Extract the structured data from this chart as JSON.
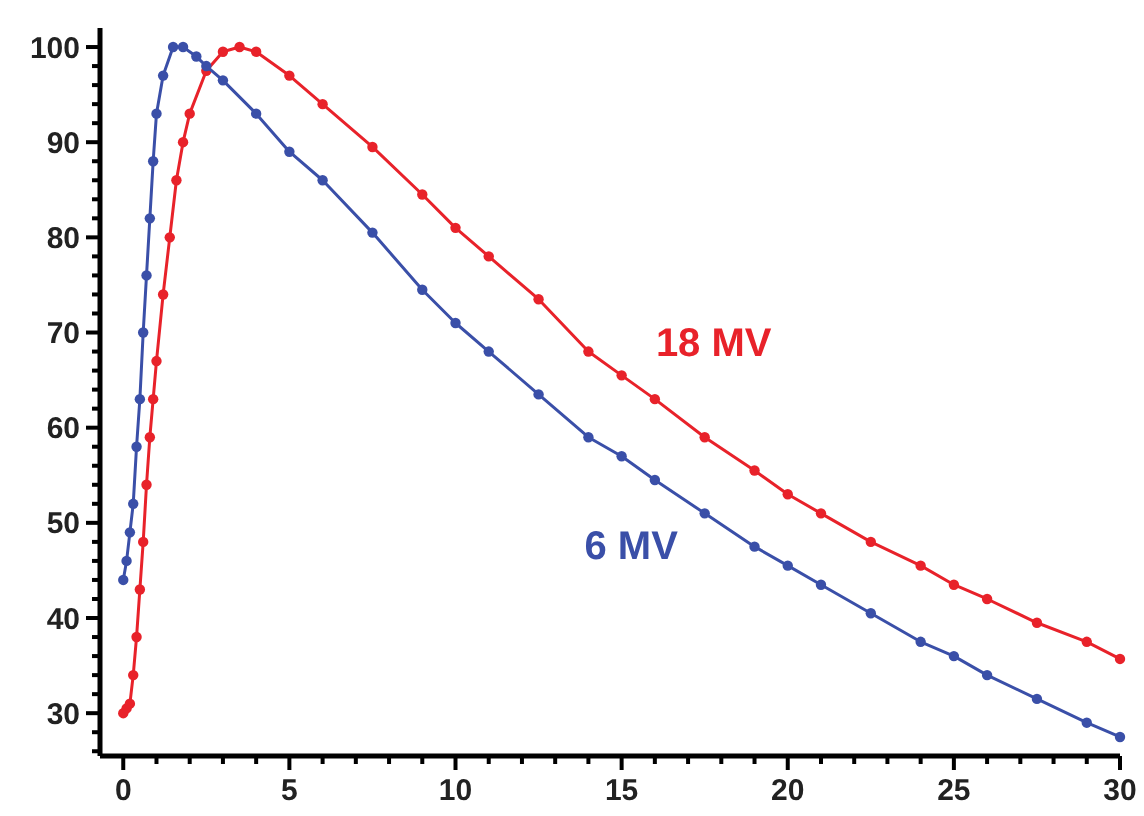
{
  "chart_data": {
    "type": "line",
    "xlim": [
      -0.7,
      30
    ],
    "ylim": [
      25.5,
      102
    ],
    "xticks": [
      0,
      {
        "value": 1,
        "label": null
      },
      {
        "value": 2,
        "label": null
      },
      {
        "value": 3,
        "label": null
      },
      {
        "value": 4,
        "label": null
      },
      5,
      {
        "value": 6,
        "label": null
      },
      {
        "value": 7,
        "label": null
      },
      {
        "value": 8,
        "label": null
      },
      {
        "value": 9,
        "label": null
      },
      10,
      {
        "value": 11,
        "label": null
      },
      {
        "value": 12,
        "label": null
      },
      {
        "value": 13,
        "label": null
      },
      {
        "value": 14,
        "label": null
      },
      15,
      {
        "value": 16,
        "label": null
      },
      {
        "value": 17,
        "label": null
      },
      {
        "value": 18,
        "label": null
      },
      {
        "value": 19,
        "label": null
      },
      20,
      {
        "value": 21,
        "label": null
      },
      {
        "value": 22,
        "label": null
      },
      {
        "value": 23,
        "label": null
      },
      {
        "value": 24,
        "label": null
      },
      25,
      {
        "value": 26,
        "label": null
      },
      {
        "value": 27,
        "label": null
      },
      {
        "value": 28,
        "label": null
      },
      {
        "value": 29,
        "label": null
      },
      30
    ],
    "yticks": [
      {
        "value": 26,
        "label": null
      },
      {
        "value": 28,
        "label": null
      },
      30,
      {
        "value": 32,
        "label": null
      },
      {
        "value": 34,
        "label": null
      },
      {
        "value": 36,
        "label": null
      },
      {
        "value": 38,
        "label": null
      },
      40,
      {
        "value": 42,
        "label": null
      },
      {
        "value": 44,
        "label": null
      },
      {
        "value": 46,
        "label": null
      },
      {
        "value": 48,
        "label": null
      },
      50,
      {
        "value": 52,
        "label": null
      },
      {
        "value": 54,
        "label": null
      },
      {
        "value": 56,
        "label": null
      },
      {
        "value": 58,
        "label": null
      },
      60,
      {
        "value": 62,
        "label": null
      },
      {
        "value": 64,
        "label": null
      },
      {
        "value": 66,
        "label": null
      },
      {
        "value": 68,
        "label": null
      },
      70,
      {
        "value": 72,
        "label": null
      },
      {
        "value": 74,
        "label": null
      },
      {
        "value": 76,
        "label": null
      },
      {
        "value": 78,
        "label": null
      },
      80,
      {
        "value": 82,
        "label": null
      },
      {
        "value": 84,
        "label": null
      },
      {
        "value": 86,
        "label": null
      },
      {
        "value": 88,
        "label": null
      },
      90,
      {
        "value": 92,
        "label": null
      },
      {
        "value": 94,
        "label": null
      },
      {
        "value": 96,
        "label": null
      },
      {
        "value": 98,
        "label": null
      },
      100
    ],
    "grid": false,
    "marker": "circle",
    "line_style": "solid",
    "series": [
      {
        "name": "18 MV",
        "color": "#e8222a",
        "x": [
          0,
          0.1,
          0.2,
          0.3,
          0.4,
          0.5,
          0.6,
          0.7,
          0.8,
          0.9,
          1,
          1.2,
          1.4,
          1.6,
          1.8,
          2,
          2.5,
          3,
          3.5,
          4,
          5,
          6,
          7.5,
          9,
          10,
          11,
          12.5,
          14,
          15,
          16,
          17.5,
          19,
          20,
          21,
          22.5,
          24,
          25,
          26,
          27.5,
          29,
          30
        ],
        "values": [
          30,
          30.5,
          31,
          34,
          38,
          43,
          48,
          54,
          59,
          63,
          67,
          74,
          80,
          86,
          90,
          93,
          97.5,
          99.5,
          100,
          99.5,
          97,
          94,
          89.5,
          84.5,
          81,
          78,
          73.5,
          68,
          65.5,
          63,
          59,
          55.5,
          53,
          51,
          48,
          45.5,
          43.5,
          42,
          39.5,
          37.5,
          35.7
        ]
      },
      {
        "name": "6 MV",
        "color": "#3a4fa8",
        "x": [
          0,
          0.1,
          0.2,
          0.3,
          0.4,
          0.5,
          0.6,
          0.7,
          0.8,
          0.9,
          1,
          1.2,
          1.5,
          1.8,
          2.2,
          2.5,
          3,
          4,
          5,
          6,
          7.5,
          9,
          10,
          11,
          12.5,
          14,
          15,
          16,
          17.5,
          19,
          20,
          21,
          22.5,
          24,
          25,
          26,
          27.5,
          29,
          30
        ],
        "values": [
          44,
          46,
          49,
          52,
          58,
          63,
          70,
          76,
          82,
          88,
          93,
          97,
          100,
          100,
          99,
          98,
          96.5,
          93,
          89,
          86,
          80.5,
          74.5,
          71,
          68,
          63.5,
          59,
          57,
          54.5,
          51,
          47.5,
          45.5,
          43.5,
          40.5,
          37.5,
          36,
          34,
          31.5,
          29,
          27.5
        ]
      }
    ]
  }
}
